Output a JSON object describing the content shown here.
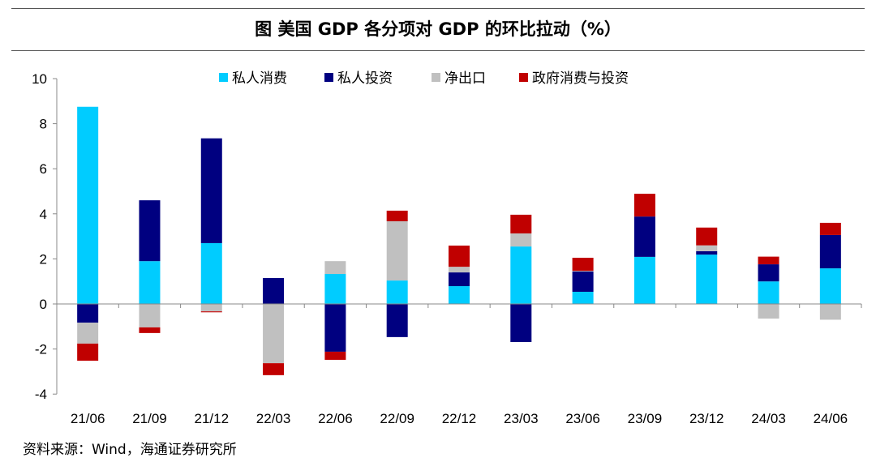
{
  "chart_data": {
    "type": "bar",
    "stacked": true,
    "title": "图  美国 GDP 各分项对 GDP 的环比拉动（%）",
    "categories": [
      "21/06",
      "21/09",
      "21/12",
      "22/03",
      "22/06",
      "22/09",
      "22/12",
      "23/03",
      "23/06",
      "23/09",
      "23/12",
      "24/03",
      "24/06"
    ],
    "series": [
      {
        "name": "私人消费",
        "color": "#00CCFF",
        "values": [
          8.75,
          1.9,
          2.7,
          0,
          1.33,
          1.04,
          0.79,
          2.55,
          0.54,
          2.09,
          2.19,
          1.0,
          1.58
        ]
      },
      {
        "name": "私人投资",
        "color": "#000080",
        "values": [
          -0.83,
          2.7,
          4.65,
          1.15,
          -2.12,
          -1.47,
          0.61,
          -1.69,
          0.9,
          1.79,
          0.15,
          0.76,
          1.48
        ]
      },
      {
        "name": "净出口",
        "color": "#C0C0C0",
        "values": [
          -0.93,
          -1.04,
          -0.33,
          -2.63,
          0.57,
          2.63,
          0.25,
          0.58,
          0.03,
          0,
          0.26,
          -0.65,
          -0.7
        ]
      },
      {
        "name": "政府消费与投资",
        "color": "#C00000",
        "values": [
          -0.76,
          -0.25,
          -0.04,
          -0.53,
          -0.36,
          0.47,
          0.94,
          0.83,
          0.58,
          1.01,
          0.79,
          0.34,
          0.54
        ]
      }
    ],
    "ylim": [
      -4,
      10
    ],
    "yticks": [
      -4,
      -2,
      0,
      2,
      4,
      6,
      8,
      10
    ],
    "grid": false,
    "legend": "top"
  },
  "source": "资料来源：Wind，海通证券研究所"
}
